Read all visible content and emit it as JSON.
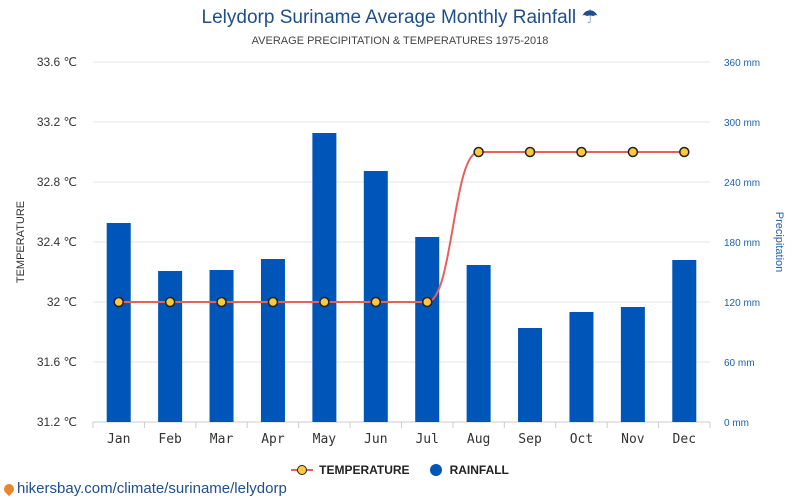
{
  "title": "Lelydorp Suriname Average Monthly Rainfall ☂",
  "subtitle": "AVERAGE PRECIPITATION & TEMPERATURES 1975-2018",
  "source": "hikersbay.com/climate/suriname/lelydorp",
  "legend": {
    "temperature": "TEMPERATURE",
    "rainfall": "RAINFALL"
  },
  "colors": {
    "bar": "#0055b8",
    "line": "#e8605c",
    "marker": "#ffc93c",
    "title": "#1f4e8c",
    "right_axis": "#1f5fa8"
  },
  "chart_data": {
    "type": "bar",
    "title": "Lelydorp Suriname Average Monthly Rainfall ☂",
    "subtitle": "AVERAGE PRECIPITATION & TEMPERATURES 1975-2018",
    "categories": [
      "Jan",
      "Feb",
      "Mar",
      "Apr",
      "May",
      "Jun",
      "Jul",
      "Aug",
      "Sep",
      "Oct",
      "Nov",
      "Dec"
    ],
    "series": [
      {
        "name": "RAINFALL",
        "type": "bar",
        "axis": "right",
        "unit": "mm",
        "values": [
          199,
          151,
          152,
          163,
          289,
          251,
          185,
          157,
          94,
          110,
          115,
          162
        ]
      },
      {
        "name": "TEMPERATURE",
        "type": "line",
        "axis": "left",
        "unit": "℃",
        "values": [
          32,
          32,
          32,
          32,
          32,
          32,
          32,
          33,
          33,
          33,
          33,
          33
        ]
      }
    ],
    "ylabel_left": "TEMPERATURE",
    "ylabel_right": "Precipitation",
    "ylim_left": [
      31.2,
      33.6
    ],
    "ylim_right": [
      0,
      360
    ],
    "yticks_left": [
      "31.2 ℃",
      "31.6 ℃",
      "32 ℃",
      "32.4 ℃",
      "32.8 ℃",
      "33.2 ℃",
      "33.6 ℃"
    ],
    "yticks_right": [
      "0 mm",
      "60 mm",
      "120 mm",
      "180 mm",
      "240 mm",
      "300 mm",
      "360 mm"
    ],
    "grid": true,
    "legend_position": "bottom-center"
  }
}
